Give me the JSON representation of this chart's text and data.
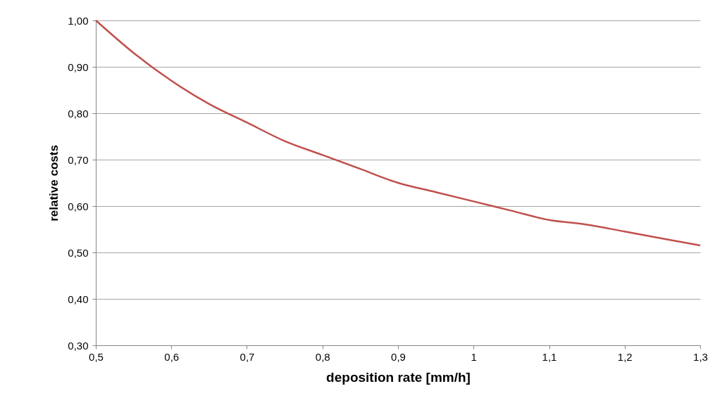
{
  "chart_data": {
    "type": "line",
    "xlabel": "deposition rate [mm/h]",
    "ylabel": "relative costs",
    "x": [
      0.5,
      0.55,
      0.6,
      0.65,
      0.7,
      0.75,
      0.8,
      0.85,
      0.9,
      0.95,
      1.0,
      1.05,
      1.1,
      1.15,
      1.2,
      1.25,
      1.3
    ],
    "series": [
      {
        "color": "#c0504d",
        "values": [
          1.0,
          0.93,
          0.87,
          0.82,
          0.78,
          0.74,
          0.71,
          0.68,
          0.65,
          0.63,
          0.61,
          0.59,
          0.57,
          0.56,
          0.545,
          0.53,
          0.515
        ]
      }
    ],
    "xlim": [
      0.5,
      1.3
    ],
    "xticks": [
      {
        "value": 0.5,
        "label": "0,5"
      },
      {
        "value": 0.6,
        "label": "0,6"
      },
      {
        "value": 0.7,
        "label": "0,7"
      },
      {
        "value": 0.8,
        "label": "0,8"
      },
      {
        "value": 0.9,
        "label": "0,9"
      },
      {
        "value": 1,
        "label": "1"
      },
      {
        "value": 1.1,
        "label": "1,1"
      },
      {
        "value": 1.2,
        "label": "1,2"
      },
      {
        "value": 1.3,
        "label": "1,3"
      }
    ],
    "ylim": [
      0.3,
      1.0
    ],
    "yticks": [
      {
        "value": 0.3,
        "label": "0,30"
      },
      {
        "value": 0.4,
        "label": "0,40"
      },
      {
        "value": 0.5,
        "label": "0,50"
      },
      {
        "value": 0.6,
        "label": "0,60"
      },
      {
        "value": 0.7,
        "label": "0,70"
      },
      {
        "value": 0.8,
        "label": "0,80"
      },
      {
        "value": 0.9,
        "label": "0,90"
      },
      {
        "value": 1.0,
        "label": "1,00"
      }
    ],
    "grid": "y",
    "legend": false,
    "marker": "none",
    "line_style": "solid"
  }
}
